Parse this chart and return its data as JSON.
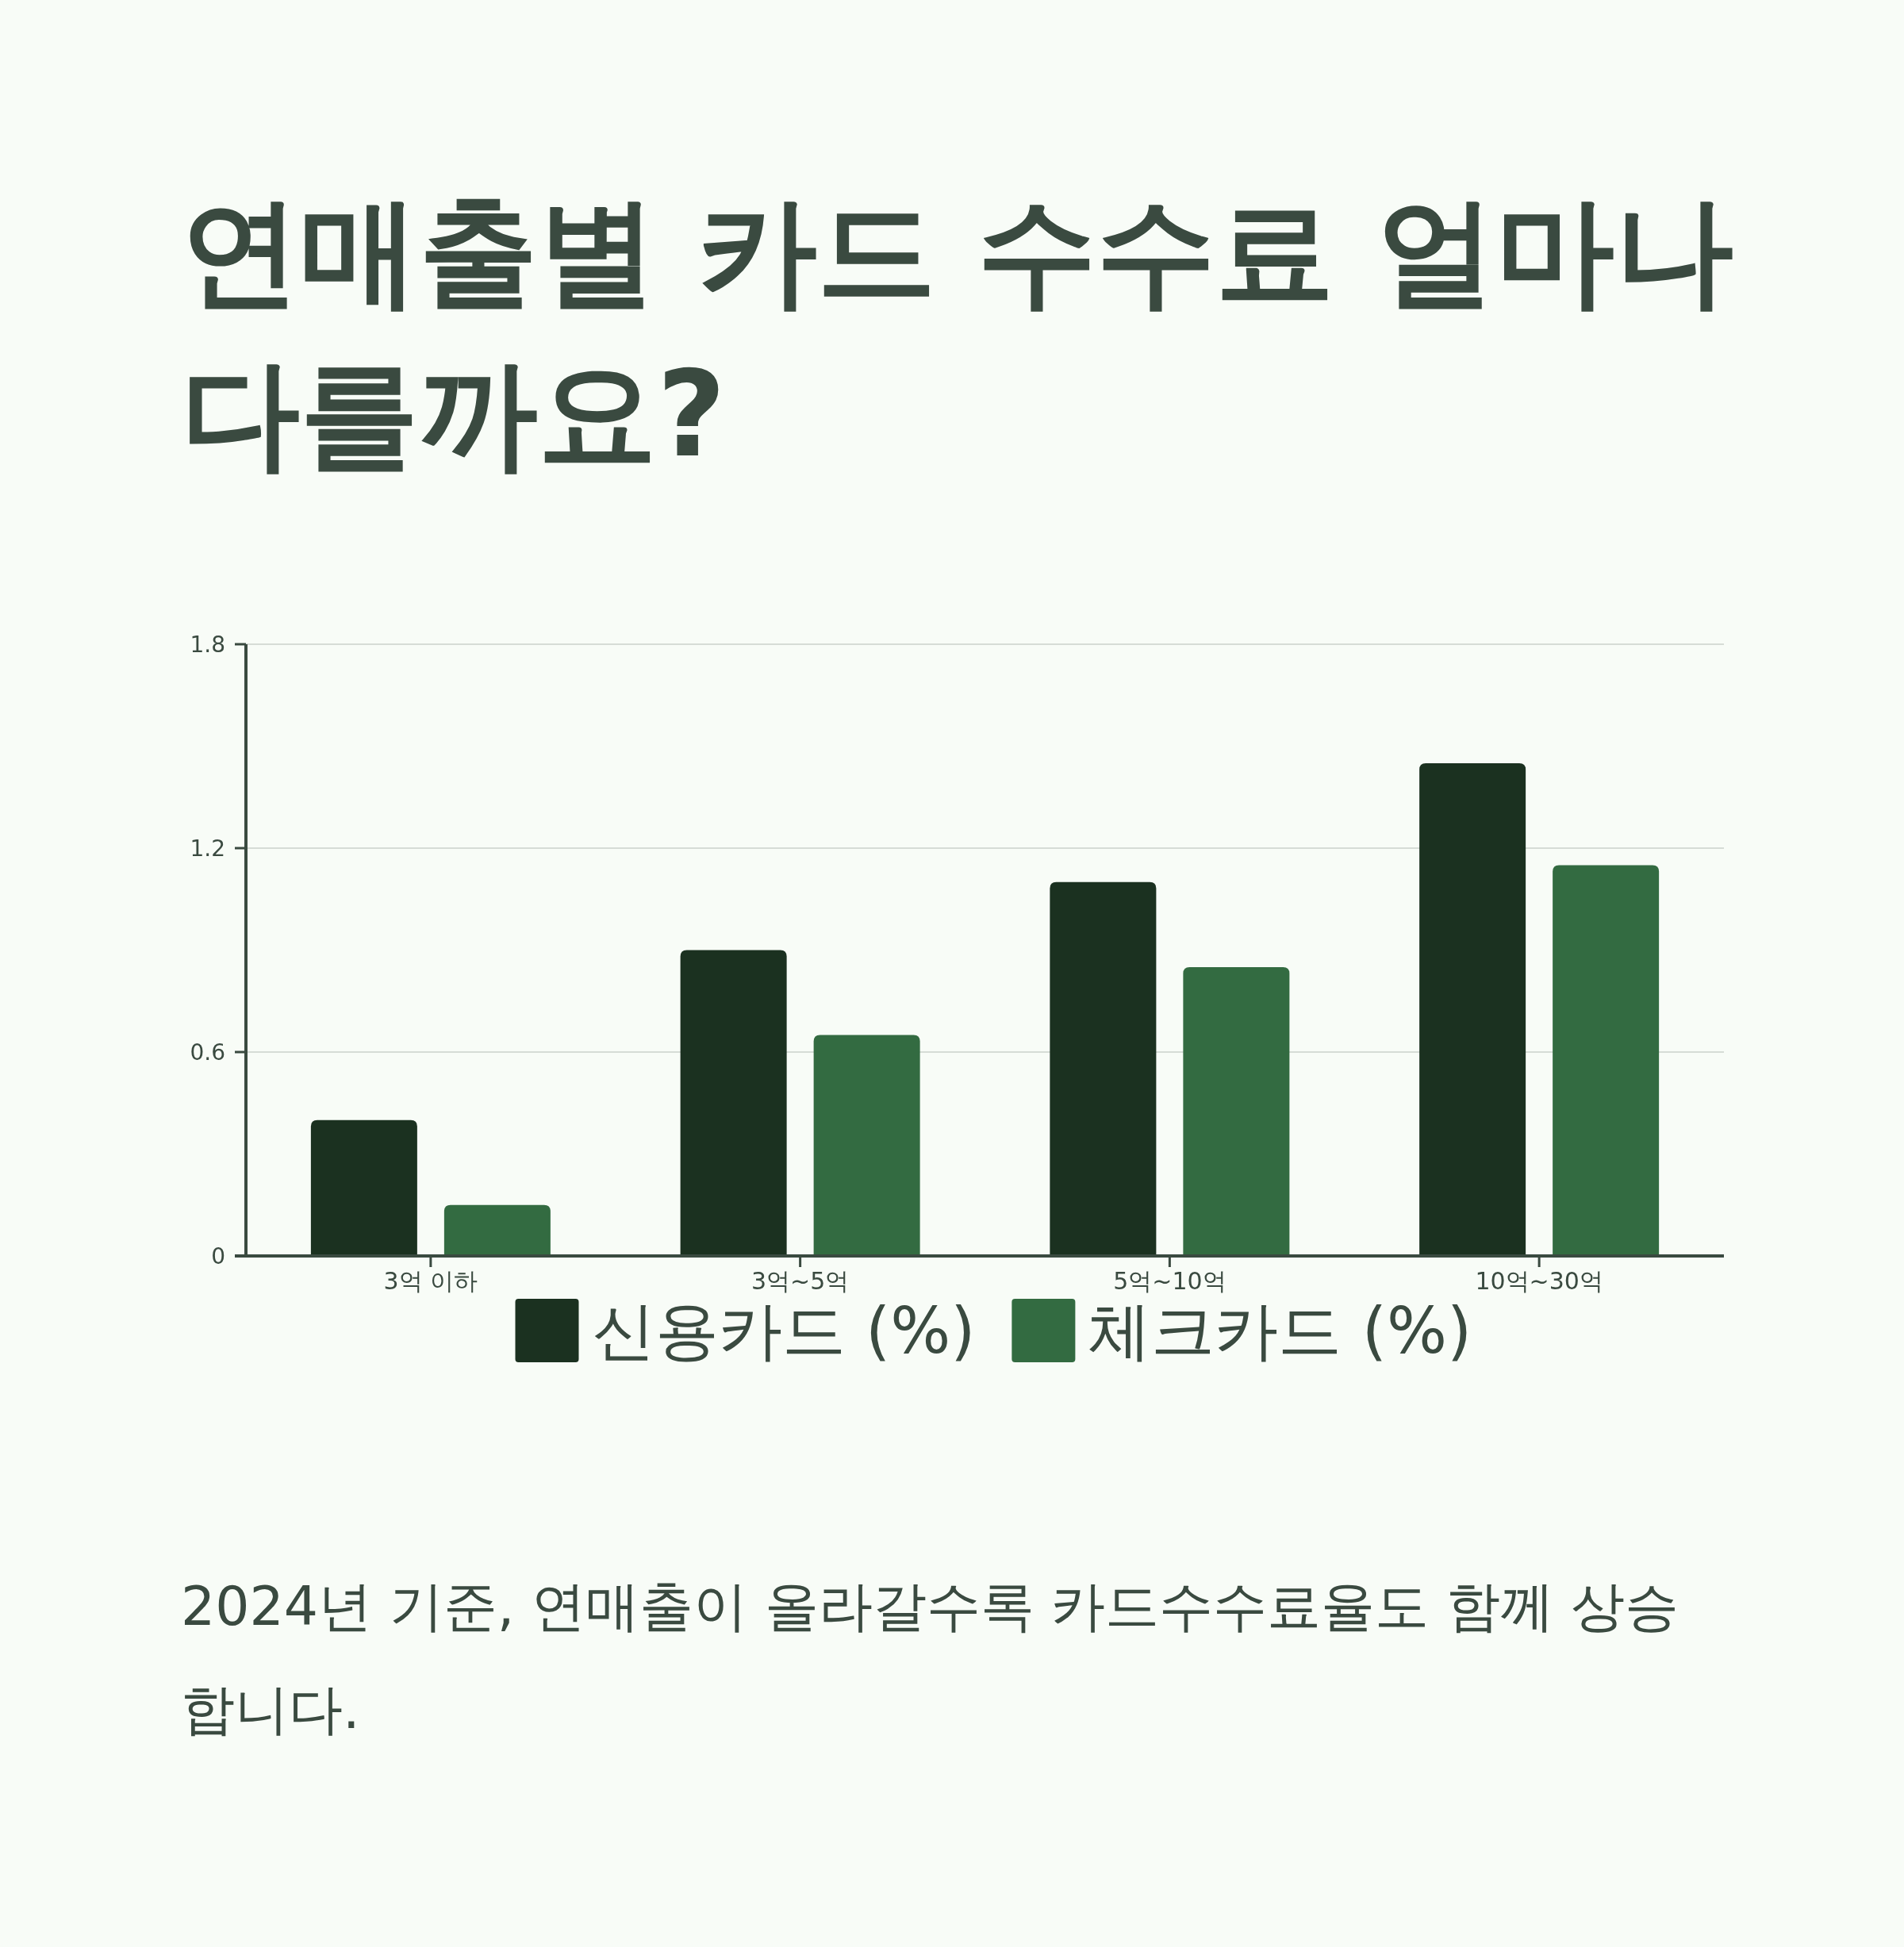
{
  "chart_data": {
    "type": "bar",
    "title": "연매출별 카드 수수료 얼마나 다를까요?",
    "categories": [
      "3억 이하",
      "3억~5억",
      "5억~10억",
      "10억~30억"
    ],
    "series": [
      {
        "name": "신용카드 (%)",
        "color": "#1b3120",
        "values": [
          0.4,
          0.9,
          1.1,
          1.45
        ]
      },
      {
        "name": "체크카드 (%)",
        "color": "#336b41",
        "values": [
          0.15,
          0.65,
          0.85,
          1.15
        ]
      }
    ],
    "ylim": [
      0,
      1.8
    ],
    "yticks": [
      0,
      0.6,
      1.2,
      1.8
    ],
    "grid": "y",
    "legend": "bottom",
    "annotations": [
      "2024년 기준, 연매출이 올라갈수록 카드수수료율도 함께 상승합니다."
    ]
  }
}
